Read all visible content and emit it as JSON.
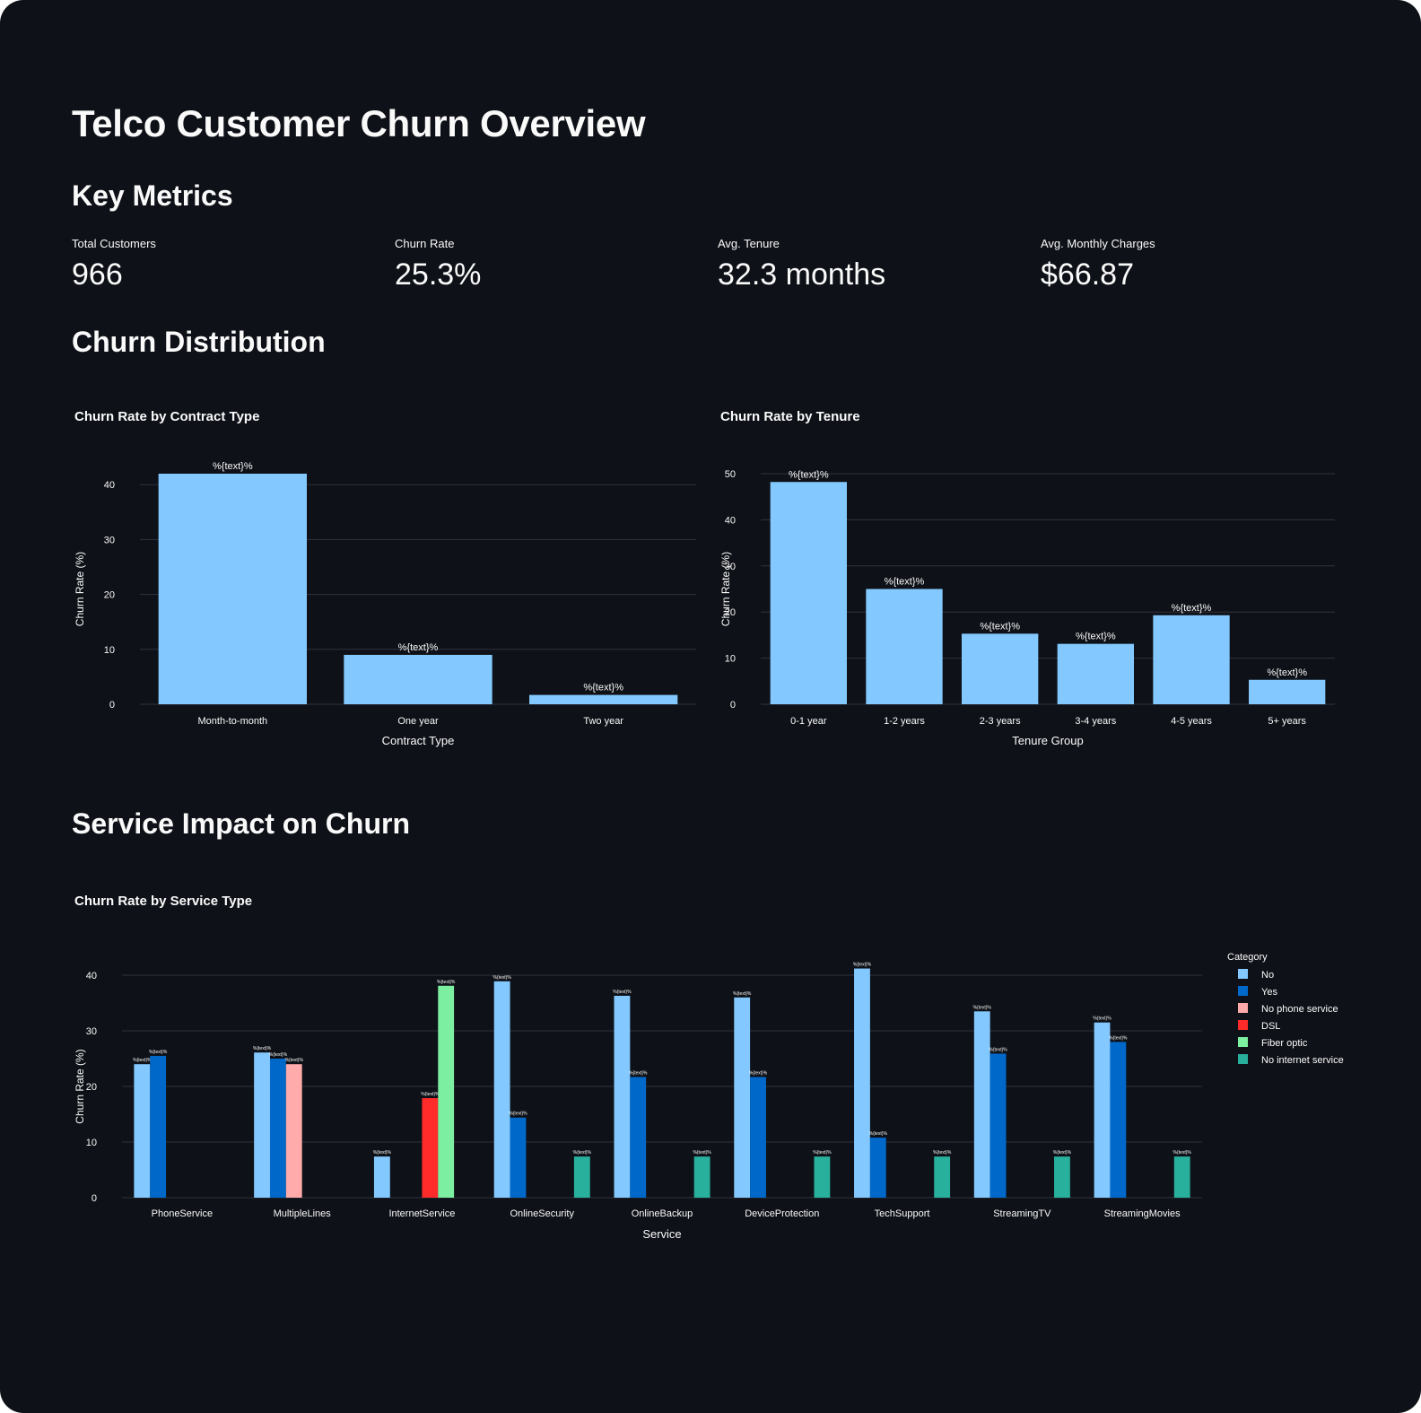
{
  "page": {
    "title": "Telco Customer Churn Overview",
    "sections": {
      "metrics": "Key Metrics",
      "distribution": "Churn Distribution",
      "service": "Service Impact on Churn"
    }
  },
  "metrics": [
    {
      "label": "Total Customers",
      "value": "966"
    },
    {
      "label": "Churn Rate",
      "value": "25.3%"
    },
    {
      "label": "Avg. Tenure",
      "value": "32.3 months"
    },
    {
      "label": "Avg. Monthly Charges",
      "value": "$66.87"
    }
  ],
  "colors": {
    "background": "#0e1117",
    "gridline": "#31333f",
    "text": "#fafafa",
    "bar_primary": "#83c9ff"
  },
  "chart_data": [
    {
      "id": "contract",
      "type": "bar",
      "title": "Churn Rate by Contract Type",
      "xlabel": "Contract Type",
      "ylabel": "Churn Rate (%)",
      "categories": [
        "Month-to-month",
        "One year",
        "Two year"
      ],
      "values": [
        42,
        9,
        1.7
      ],
      "bar_label": "%{text}%",
      "ylim": [
        0,
        42
      ],
      "yticks": [
        0,
        10,
        20,
        30,
        40
      ],
      "color": "#83c9ff",
      "grid": true
    },
    {
      "id": "tenure",
      "type": "bar",
      "title": "Churn Rate by Tenure",
      "xlabel": "Tenure Group",
      "ylabel": "Churn Rate (%)",
      "categories": [
        "0-1 year",
        "1-2 years",
        "2-3 years",
        "3-4 years",
        "4-5 years",
        "5+ years"
      ],
      "values": [
        48.2,
        25,
        15.3,
        13.1,
        19.3,
        5.3
      ],
      "bar_label": "%{text}%",
      "ylim": [
        0,
        50
      ],
      "yticks": [
        0,
        10,
        20,
        30,
        40,
        50
      ],
      "color": "#83c9ff",
      "grid": true
    },
    {
      "id": "service",
      "type": "bar",
      "title": "Churn Rate by Service Type",
      "xlabel": "Service",
      "ylabel": "Churn Rate (%)",
      "categories": [
        "PhoneService",
        "MultipleLines",
        "InternetService",
        "OnlineSecurity",
        "OnlineBackup",
        "DeviceProtection",
        "TechSupport",
        "StreamingTV",
        "StreamingMovies"
      ],
      "legend_title": "Category",
      "legend_position": "right",
      "bar_label": "%{text}%",
      "ylim": [
        0,
        40
      ],
      "yticks": [
        0,
        10,
        20,
        30,
        40
      ],
      "grid": true,
      "series": [
        {
          "name": "No",
          "color": "#83c9ff",
          "values": [
            24,
            26.1,
            7.4,
            38.9,
            36.3,
            36,
            41.2,
            33.5,
            31.5
          ]
        },
        {
          "name": "Yes",
          "color": "#0068c9",
          "values": [
            25.5,
            25,
            null,
            14.4,
            21.7,
            21.7,
            10.8,
            25.9,
            28
          ]
        },
        {
          "name": "No phone service",
          "color": "#ffabab",
          "values": [
            null,
            24,
            null,
            null,
            null,
            null,
            null,
            null,
            null
          ]
        },
        {
          "name": "DSL",
          "color": "#ff2b2b",
          "values": [
            null,
            null,
            17.9,
            null,
            null,
            null,
            null,
            null,
            null
          ]
        },
        {
          "name": "Fiber optic",
          "color": "#7defa1",
          "values": [
            null,
            null,
            38.1,
            null,
            null,
            null,
            null,
            null,
            null
          ]
        },
        {
          "name": "No internet service",
          "color": "#29b09d",
          "values": [
            null,
            null,
            null,
            7.4,
            7.4,
            7.4,
            7.4,
            7.4,
            7.4
          ]
        }
      ]
    }
  ]
}
